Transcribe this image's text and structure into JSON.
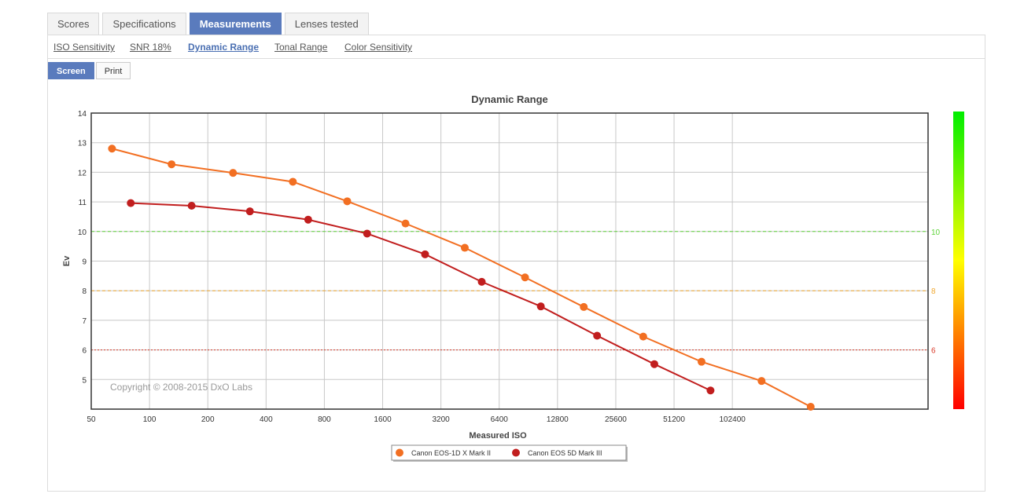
{
  "tabs": [
    {
      "label": "Scores",
      "active": false
    },
    {
      "label": "Specifications",
      "active": false
    },
    {
      "label": "Measurements",
      "active": true
    },
    {
      "label": "Lenses tested",
      "active": false
    }
  ],
  "subnav": [
    {
      "label": "ISO Sensitivity",
      "active": false
    },
    {
      "label": "SNR 18%",
      "active": false
    },
    {
      "label": "Dynamic Range",
      "active": true
    },
    {
      "label": "Tonal Range",
      "active": false
    },
    {
      "label": "Color Sensitivity",
      "active": false
    }
  ],
  "modes": [
    {
      "label": "Screen",
      "active": true
    },
    {
      "label": "Print",
      "active": false
    }
  ],
  "chart_data": {
    "type": "line",
    "title": "Dynamic Range",
    "xlabel": "Measured ISO",
    "ylabel": "Ev",
    "x_scale": "log2",
    "x_ticks": [
      50,
      100,
      200,
      400,
      800,
      1600,
      3200,
      6400,
      12800,
      25600,
      51200,
      102400
    ],
    "xlim": [
      50,
      1050000
    ],
    "ylim": [
      4,
      14
    ],
    "y_ticks": [
      5,
      6,
      7,
      8,
      9,
      10,
      11,
      12,
      13,
      14
    ],
    "grid": true,
    "copyright": "Copyright © 2008-2015 DxO Labs",
    "reference_lines": [
      {
        "value": 10,
        "label": "10",
        "color": "#5fd43a",
        "style": "dashed"
      },
      {
        "value": 8,
        "label": "8",
        "color": "#f0a830",
        "style": "dashed"
      },
      {
        "value": 6,
        "label": "6",
        "color": "#d93a2a",
        "style": "dotted"
      }
    ],
    "colorbar": {
      "colors": [
        "#00ee00",
        "#ffff00",
        "#ff0000"
      ]
    },
    "legend_position": "bottom",
    "series": [
      {
        "name": "Canon  EOS-1D X Mark II",
        "color": "#f26f22",
        "x": [
          64,
          130,
          270,
          550,
          1050,
          2100,
          4250,
          8700,
          17500,
          35500,
          71000,
          145000,
          260000
        ],
        "y": [
          12.8,
          12.27,
          11.98,
          11.68,
          11.02,
          10.27,
          9.45,
          8.45,
          7.45,
          6.45,
          5.6,
          4.95,
          4.08
        ]
      },
      {
        "name": "Canon EOS 5D Mark III",
        "color": "#c11e1e",
        "x": [
          80,
          165,
          330,
          660,
          1330,
          2650,
          5200,
          10500,
          20500,
          40500,
          79000
        ],
        "y": [
          10.96,
          10.87,
          10.68,
          10.4,
          9.93,
          9.23,
          8.3,
          7.47,
          6.48,
          5.52,
          4.63
        ]
      }
    ]
  }
}
